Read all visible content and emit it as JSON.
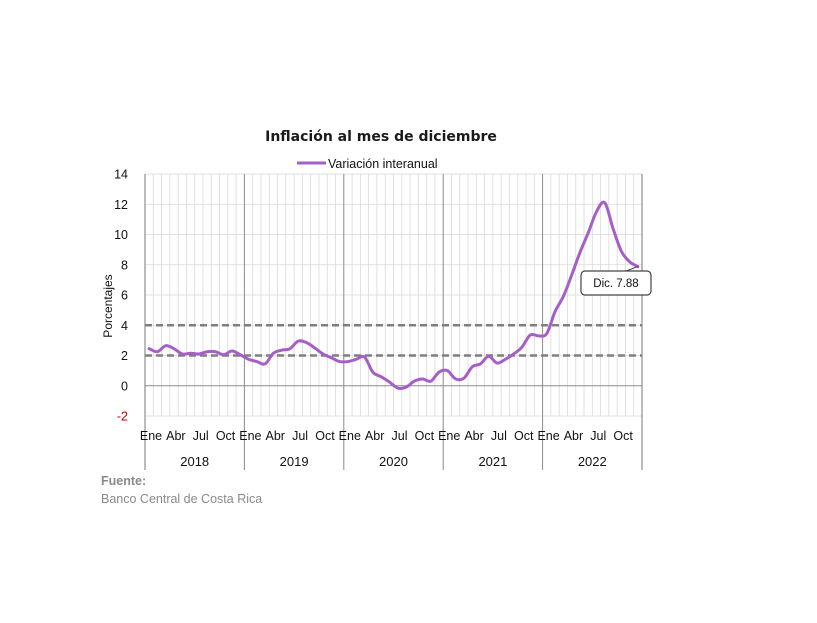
{
  "chart_data": {
    "type": "line",
    "title": "Inflación al mes de diciembre",
    "ylabel": "Porcentajes",
    "ylim": [
      -2,
      14
    ],
    "yticks": [
      -2,
      0,
      2,
      4,
      6,
      8,
      10,
      12,
      14
    ],
    "grid": true,
    "legend_position": "top-center",
    "month_labels": [
      "Ene",
      "Abr",
      "Jul",
      "Oct"
    ],
    "years": [
      "2018",
      "2019",
      "2020",
      "2021",
      "2022"
    ],
    "series": [
      {
        "name": "Variación interanual",
        "color": "#a55fc6",
        "values": [
          2.45,
          2.25,
          2.65,
          2.45,
          2.1,
          2.15,
          2.1,
          2.25,
          2.25,
          2.05,
          2.3,
          2.05,
          1.75,
          1.6,
          1.45,
          2.15,
          2.35,
          2.45,
          2.95,
          2.85,
          2.5,
          2.1,
          1.85,
          1.6,
          1.6,
          1.75,
          1.9,
          0.9,
          0.6,
          0.25,
          -0.15,
          -0.1,
          0.3,
          0.45,
          0.3,
          0.9,
          1.0,
          0.45,
          0.5,
          1.25,
          1.45,
          1.95,
          1.5,
          1.75,
          2.1,
          2.55,
          3.35,
          3.3,
          3.45,
          4.9,
          5.9,
          7.3,
          8.8,
          10.1,
          11.5,
          12.1,
          10.4,
          8.9,
          8.2,
          7.88
        ]
      }
    ],
    "reference_lines": [
      4,
      2
    ],
    "annotation": "Dic. 7.88"
  },
  "source": {
    "label": "Fuente:",
    "text": "Banco Central de Costa Rica"
  },
  "colors": {
    "series": "#a55fc6",
    "reference": "#7f7f7f",
    "grid": "#d9d9d9",
    "negative_tick": "#c00000"
  }
}
